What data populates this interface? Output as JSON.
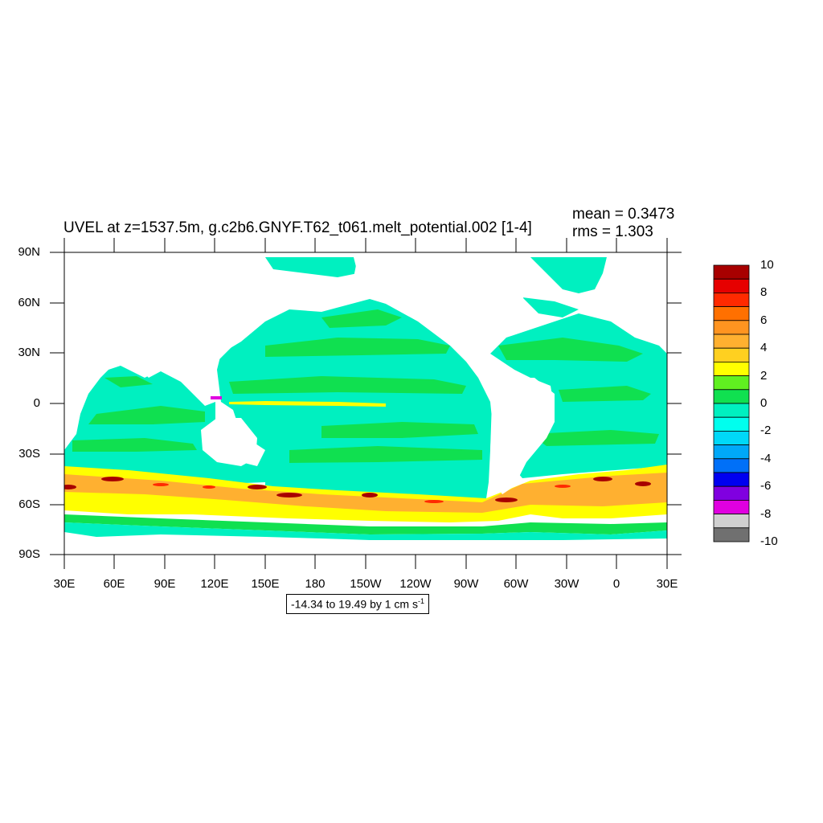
{
  "map": {
    "title": "UVEL at z=1537.5m, g.c2b6.GNYF.T62_t061.melt_potential.002 [1-4]",
    "mean_label": "mean = 0.3473",
    "rms_label": "rms = 1.303",
    "variable": "UVEL",
    "lat_labels": [
      "90N",
      "60N",
      "30N",
      "0",
      "30S",
      "60S",
      "90S"
    ],
    "lon_labels": [
      "30E",
      "60E",
      "90E",
      "120E",
      "150E",
      "180",
      "150W",
      "120W",
      "90W",
      "60W",
      "30W",
      "0",
      "30E"
    ],
    "contour_info": {
      "text": "-14.34 to 19.49 by 1 cm s",
      "superscript": "-1"
    }
  },
  "colorbar": {
    "labels": [
      "10",
      "8",
      "6",
      "4",
      "2",
      "0",
      "-2",
      "-4",
      "-6",
      "-8",
      "-10"
    ],
    "colors": [
      "#a80000",
      "#e60000",
      "#ff2a00",
      "#ff7000",
      "#ff9420",
      "#ffb030",
      "#ffd020",
      "#ffff00",
      "#60f020",
      "#10e050",
      "#00f0c0",
      "#00ffee",
      "#00d8f8",
      "#00a8f8",
      "#0070f8",
      "#0000f0",
      "#8000e0",
      "#e000e0",
      "#d0d0d0",
      "#707070"
    ]
  },
  "palette": {
    "land": "#ffffff",
    "ocean_base": "#00f0c0",
    "ocean_band": "#10e050",
    "acc_band": "#ffff00",
    "acc_core": "#ff9420",
    "acc_jet": "#a80000",
    "weak_negative": "#00ffee"
  }
}
